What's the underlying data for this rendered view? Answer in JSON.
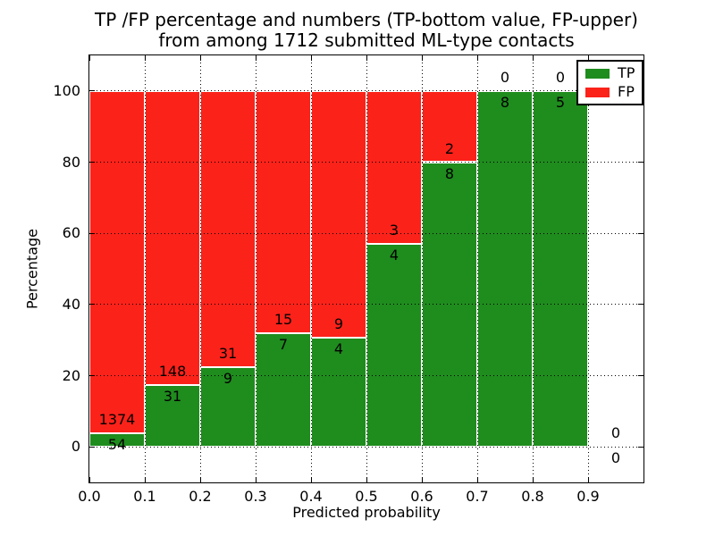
{
  "title": {
    "line1": "TP /FP percentage and numbers (TP-bottom value, FP-upper)",
    "line2": "from among 1712 submitted ML-type contacts"
  },
  "axes": {
    "xlabel": "Predicted probability",
    "ylabel": "Percentage",
    "x_tick_labels": [
      "0.0",
      "0.1",
      "0.2",
      "0.3",
      "0.4",
      "0.5",
      "0.6",
      "0.7",
      "0.8",
      "0.9"
    ],
    "y_tick_labels": [
      "0",
      "20",
      "40",
      "60",
      "80",
      "100"
    ],
    "xlim": [
      0.0,
      1.0
    ],
    "ylim": [
      -10,
      110
    ],
    "grid_style": "dotted"
  },
  "legend": {
    "position": "upper right",
    "items": [
      {
        "label": "TP",
        "color": "#1F8C1E"
      },
      {
        "label": "FP",
        "color": "#FB221A"
      }
    ]
  },
  "colors": {
    "tp": "#1F8C1E",
    "fp": "#FB221A",
    "grid": "#000000",
    "background": "#FFFFFF",
    "text": "#000000"
  },
  "chart_data": {
    "type": "bar",
    "stacked": true,
    "normalization": "each bin scaled so TP% + FP% = 100",
    "title": "TP /FP percentage and numbers (TP-bottom value, FP-upper) from among 1712 submitted ML-type contacts",
    "xlabel": "Predicted probability",
    "ylabel": "Percentage",
    "total_submitted": 1712,
    "bin_width": 0.1,
    "bins": [
      {
        "x_start": 0.0,
        "tp_count": 54,
        "fp_count": 1374,
        "tp_pct": 3.78,
        "fp_pct": 96.22
      },
      {
        "x_start": 0.1,
        "tp_count": 31,
        "fp_count": 148,
        "tp_pct": 17.32,
        "fp_pct": 82.68
      },
      {
        "x_start": 0.2,
        "tp_count": 9,
        "fp_count": 31,
        "tp_pct": 22.5,
        "fp_pct": 77.5
      },
      {
        "x_start": 0.3,
        "tp_count": 7,
        "fp_count": 15,
        "tp_pct": 31.82,
        "fp_pct": 68.18
      },
      {
        "x_start": 0.4,
        "tp_count": 4,
        "fp_count": 9,
        "tp_pct": 30.77,
        "fp_pct": 69.23
      },
      {
        "x_start": 0.5,
        "tp_count": 4,
        "fp_count": 3,
        "tp_pct": 57.14,
        "fp_pct": 42.86
      },
      {
        "x_start": 0.6,
        "tp_count": 8,
        "fp_count": 2,
        "tp_pct": 80.0,
        "fp_pct": 20.0
      },
      {
        "x_start": 0.7,
        "tp_count": 8,
        "fp_count": 0,
        "tp_pct": 100.0,
        "fp_pct": 0.0
      },
      {
        "x_start": 0.8,
        "tp_count": 5,
        "fp_count": 0,
        "tp_pct": 100.0,
        "fp_pct": 0.0
      },
      {
        "x_start": 0.9,
        "tp_count": 0,
        "fp_count": 0,
        "tp_pct": null,
        "fp_pct": null
      }
    ]
  }
}
